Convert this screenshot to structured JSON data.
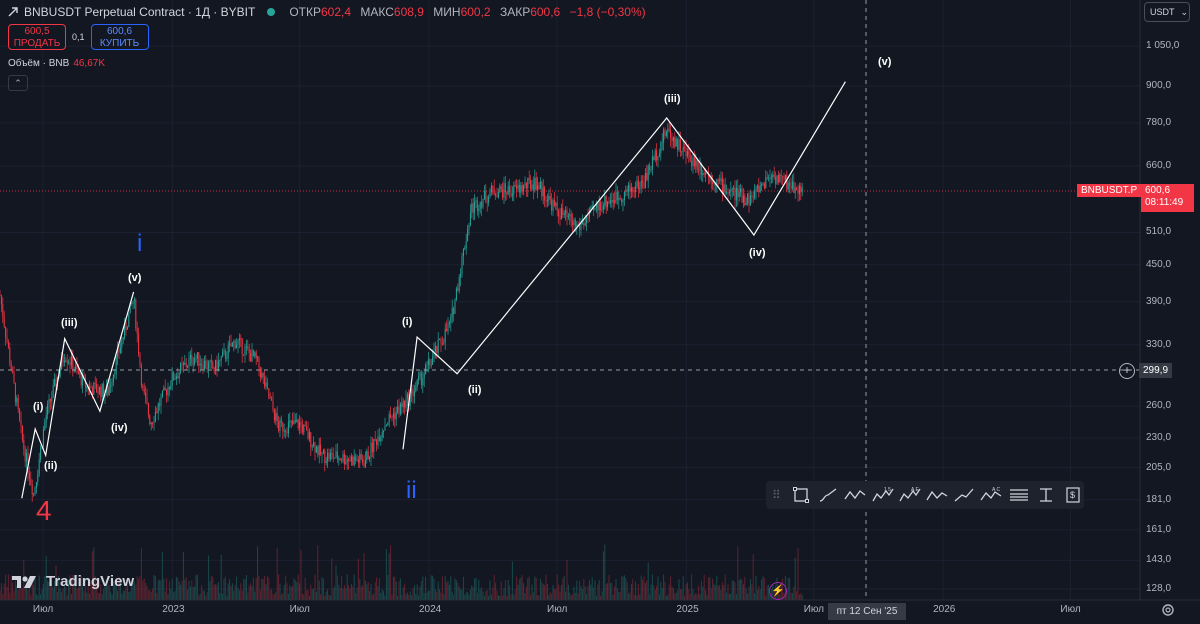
{
  "header": {
    "symbol_title": "BNBUSDT Perpetual Contract · 1Д · BYBIT",
    "ohlc": [
      {
        "label": "ОТКР",
        "value": "602,4"
      },
      {
        "label": "МАКС",
        "value": "608,9"
      },
      {
        "label": "МИН",
        "value": "600,2"
      },
      {
        "label": "ЗАКР",
        "value": "600,6"
      }
    ],
    "change": "−1,8 (−0,30%)"
  },
  "trade": {
    "sell_price": "600,5",
    "sell_label": "ПРОДАТЬ",
    "spread": "0,1",
    "buy_price": "600,6",
    "buy_label": "КУПИТЬ"
  },
  "volume": {
    "label": "Объём · BNB",
    "value": "46,67K"
  },
  "currency": "USDT",
  "price_axis": [
    "1 050,0",
    "900,0",
    "780,0",
    "660,0",
    "510,0",
    "450,0",
    "390,0",
    "330,0",
    "260,0",
    "230,0",
    "205,0",
    "181,0",
    "161,0",
    "143,0",
    "128,0"
  ],
  "price_tag": {
    "symbol": "BNBUSDT.P",
    "price": "600,6",
    "countdown": "08:11:49"
  },
  "crosshair": {
    "price": "299,9",
    "date": "пт 12 Сен '25"
  },
  "time_axis": [
    "Июл",
    "2023",
    "Июл",
    "2024",
    "Июл",
    "2025",
    "Июл",
    "2026",
    "Июл"
  ],
  "wave_labels": {
    "w1_i": "(i)",
    "w1_ii": "(ii)",
    "w1_iii": "(iii)",
    "w1_iv": "(iv)",
    "w1_v": "(v)",
    "big_i": "i",
    "big_4": "4",
    "big_ii": "ii",
    "w2_i": "(i)",
    "w2_ii": "(ii)",
    "w2_iii": "(iii)",
    "w2_iv": "(iv)",
    "w2_v": "(v)"
  },
  "brand": "TradingView",
  "colors": {
    "background": "#131722",
    "up": "#26a69a",
    "down": "#f23645",
    "wave_line": "#ffffff",
    "big_i_color": "#2962ff",
    "big_4_color": "#f23645",
    "price_tag_bg": "#f23645"
  },
  "toolbar_icons": [
    "rectangle-icon",
    "brush-icon",
    "path-icon",
    "elliott-impulse-icon",
    "elliott-correction-icon",
    "elliott-triangle-icon",
    "elliott-double-combo-icon",
    "elliott-triple-combo-icon",
    "fib-retracement-icon",
    "long-position-icon",
    "price-range-icon"
  ],
  "chart_data": {
    "type": "candlestick",
    "y_scale": "log",
    "ylim": [
      120,
      1100
    ],
    "x_range": [
      "2022-05",
      "2026-09"
    ],
    "last_close": 600.6,
    "wave_path_1": [
      {
        "date": "2022-06",
        "price": 182
      },
      {
        "date": "2022-06-20",
        "price": 238
      },
      {
        "date": "2022-07-05",
        "price": 215
      },
      {
        "date": "2022-08",
        "price": 338
      },
      {
        "date": "2022-09-20",
        "price": 255
      },
      {
        "date": "2022-11-07",
        "price": 405
      }
    ],
    "wave_path_2": [
      {
        "date": "2023-11-25",
        "price": 220
      },
      {
        "date": "2023-12-15",
        "price": 340
      },
      {
        "date": "2024-02-10",
        "price": 295
      },
      {
        "date": "2024-12-04",
        "price": 795
      },
      {
        "date": "2025-04-07",
        "price": 505
      },
      {
        "date": "2025-08-15",
        "price": 915
      }
    ],
    "price_path": [
      {
        "date": "2022-05",
        "price": 400
      },
      {
        "date": "2022-06",
        "price": 230
      },
      {
        "date": "2022-06-18",
        "price": 185
      },
      {
        "date": "2022-07-05",
        "price": 250
      },
      {
        "date": "2022-08",
        "price": 320
      },
      {
        "date": "2022-09",
        "price": 280
      },
      {
        "date": "2022-10",
        "price": 275
      },
      {
        "date": "2022-11-07",
        "price": 395
      },
      {
        "date": "2022-11-20",
        "price": 275
      },
      {
        "date": "2022-12",
        "price": 245
      },
      {
        "date": "2023-01",
        "price": 290
      },
      {
        "date": "2023-02",
        "price": 315
      },
      {
        "date": "2023-03",
        "price": 300
      },
      {
        "date": "2023-04",
        "price": 335
      },
      {
        "date": "2023-05",
        "price": 310
      },
      {
        "date": "2023-06",
        "price": 240
      },
      {
        "date": "2023-07",
        "price": 243
      },
      {
        "date": "2023-08",
        "price": 215
      },
      {
        "date": "2023-09",
        "price": 213
      },
      {
        "date": "2023-10",
        "price": 210
      },
      {
        "date": "2023-11",
        "price": 245
      },
      {
        "date": "2023-12",
        "price": 265
      },
      {
        "date": "2024-01",
        "price": 305
      },
      {
        "date": "2024-02",
        "price": 360
      },
      {
        "date": "2024-03",
        "price": 560
      },
      {
        "date": "2024-04",
        "price": 600
      },
      {
        "date": "2024-05",
        "price": 600
      },
      {
        "date": "2024-06",
        "price": 620
      },
      {
        "date": "2024-07",
        "price": 555
      },
      {
        "date": "2024-08",
        "price": 520
      },
      {
        "date": "2024-09",
        "price": 570
      },
      {
        "date": "2024-10",
        "price": 590
      },
      {
        "date": "2024-11",
        "price": 620
      },
      {
        "date": "2024-12-04",
        "price": 760
      },
      {
        "date": "2025-01",
        "price": 690
      },
      {
        "date": "2025-02",
        "price": 640
      },
      {
        "date": "2025-03",
        "price": 600
      },
      {
        "date": "2025-04",
        "price": 580
      },
      {
        "date": "2025-05",
        "price": 640
      },
      {
        "date": "2025-06",
        "price": 610
      },
      {
        "date": "2025-06-15",
        "price": 600.6
      }
    ]
  }
}
